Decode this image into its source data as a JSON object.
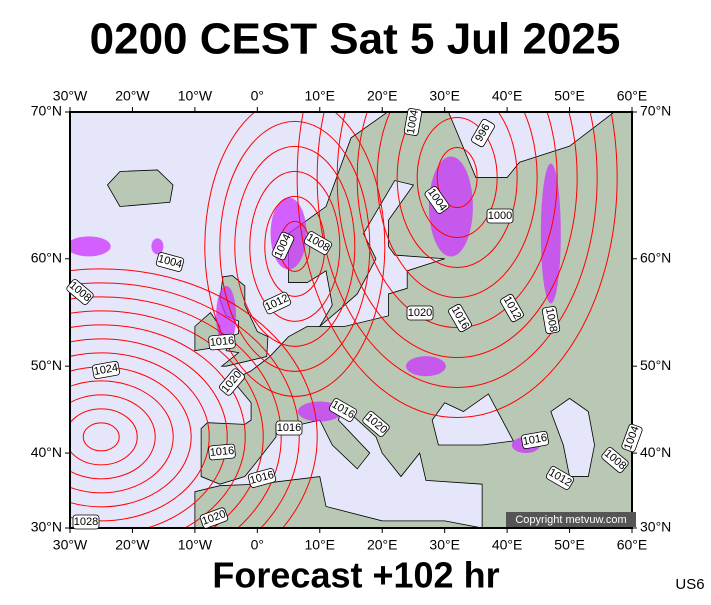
{
  "header": {
    "title": "0200 CEST Sat 5 Jul 2025"
  },
  "map": {
    "lon_ticks": [
      {
        "value": -30,
        "label": "30°W"
      },
      {
        "value": -20,
        "label": "20°W"
      },
      {
        "value": -10,
        "label": "10°W"
      },
      {
        "value": 0,
        "label": "0°"
      },
      {
        "value": 10,
        "label": "10°E"
      },
      {
        "value": 20,
        "label": "20°E"
      },
      {
        "value": 30,
        "label": "30°E"
      },
      {
        "value": 40,
        "label": "40°E"
      },
      {
        "value": 50,
        "label": "50°E"
      },
      {
        "value": 60,
        "label": "60°E"
      }
    ],
    "lat_ticks": [
      {
        "value": 70,
        "label": "70°N"
      },
      {
        "value": 60,
        "label": "60°N"
      },
      {
        "value": 50,
        "label": "50°N"
      },
      {
        "value": 40,
        "label": "40°N"
      },
      {
        "value": 30,
        "label": "30°N"
      }
    ],
    "isobar_labels": [
      1004,
      1008,
      1024,
      1028,
      1016,
      1012,
      1004,
      1008,
      1020,
      1016,
      1016,
      1016,
      1020,
      1016,
      1020,
      1020,
      1016,
      1012,
      1008,
      1000,
      1004,
      996,
      1004,
      1016,
      1012,
      1008,
      1004
    ],
    "copyright": "Copyright metvuw.com"
  },
  "footer": {
    "forecast": "Forecast +102 hr",
    "code": "US6"
  }
}
